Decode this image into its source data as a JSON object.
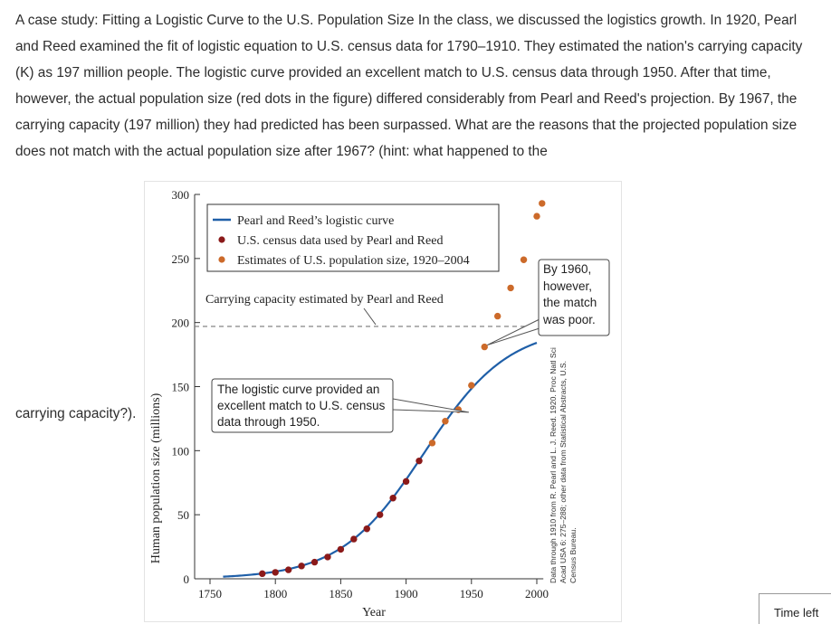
{
  "question": {
    "text": "A case study: Fitting a Logistic Curve to the U.S. Population Size In the class, we discussed the logistics growth. In 1920, Pearl and Reed examined the fit of logistic equation to U.S. census data for 1790–1910. They estimated the nation's carrying capacity (K) as 197 million people. The logistic curve provided an excellent match to U.S. census data through 1950. After that time, however, the actual population size (red dots in the figure) differed considerably from Pearl and Reed's projection. By 1967, the carrying capacity (197 million) they had predicted has been surpassed. What are the reasons that the projected population size does not match with the actual population size after 1967? (hint: what happened to the",
    "tail": "carrying capacity?)."
  },
  "timer": {
    "label": "Time left"
  },
  "colors": {
    "curve": "#1f5fa8",
    "census_pearl_reed": "#8b1a1a",
    "estimates": "#cc6a2a",
    "capacity_line": "#777777"
  },
  "chart_data": {
    "type": "scatter",
    "xlabel": "Year",
    "ylabel": "Human population size (millions)",
    "xlim": [
      1740,
      2010
    ],
    "ylim": [
      0,
      300
    ],
    "x_ticks": [
      1750,
      1800,
      1850,
      1900,
      1950,
      2000
    ],
    "y_ticks": [
      0,
      50,
      100,
      150,
      200,
      250,
      300
    ],
    "legend_position": "top-left",
    "legend": [
      {
        "label": "Pearl and Reed’s logistic curve",
        "marker": "line",
        "color": "#1f5fa8"
      },
      {
        "label": "U.S. census data used by Pearl and Reed",
        "marker": "dot",
        "color": "#8b1a1a"
      },
      {
        "label": "Estimates of U.S. population size, 1920–2004",
        "marker": "dot",
        "color": "#cc6a2a"
      }
    ],
    "carrying_capacity": {
      "value": 197,
      "label": "Carrying capacity estimated by Pearl and Reed"
    },
    "logistic_curve": {
      "K": 197,
      "midpoint_year": 1914,
      "rate": 0.031,
      "x_range": [
        1760,
        2000
      ]
    },
    "series": [
      {
        "name": "U.S. census data used by Pearl and Reed",
        "color": "#8b1a1a",
        "x": [
          1790,
          1800,
          1810,
          1820,
          1830,
          1840,
          1850,
          1860,
          1870,
          1880,
          1890,
          1900,
          1910
        ],
        "y": [
          4,
          5,
          7,
          10,
          13,
          17,
          23,
          31,
          39,
          50,
          63,
          76,
          92
        ]
      },
      {
        "name": "Estimates of U.S. population size, 1920–2004",
        "color": "#cc6a2a",
        "x": [
          1920,
          1930,
          1940,
          1950,
          1960,
          1970,
          1980,
          1990,
          2000,
          2004
        ],
        "y": [
          106,
          123,
          132,
          151,
          181,
          205,
          227,
          249,
          283,
          293
        ]
      }
    ],
    "annotations": [
      {
        "text": "The logistic curve provided an excellent match to U.S. census data through 1950.",
        "points_to_year": 1948
      },
      {
        "text": "By 1960, however, the match was poor.",
        "points_to_year": 1960
      }
    ],
    "source_note": "Data through 1910 from R. Pearl and L. J. Reed. 1920. Proc Natl Sci Acad USA 6: 275–288; other data from Statistical Abstracts, U.S. Census Bureau."
  }
}
